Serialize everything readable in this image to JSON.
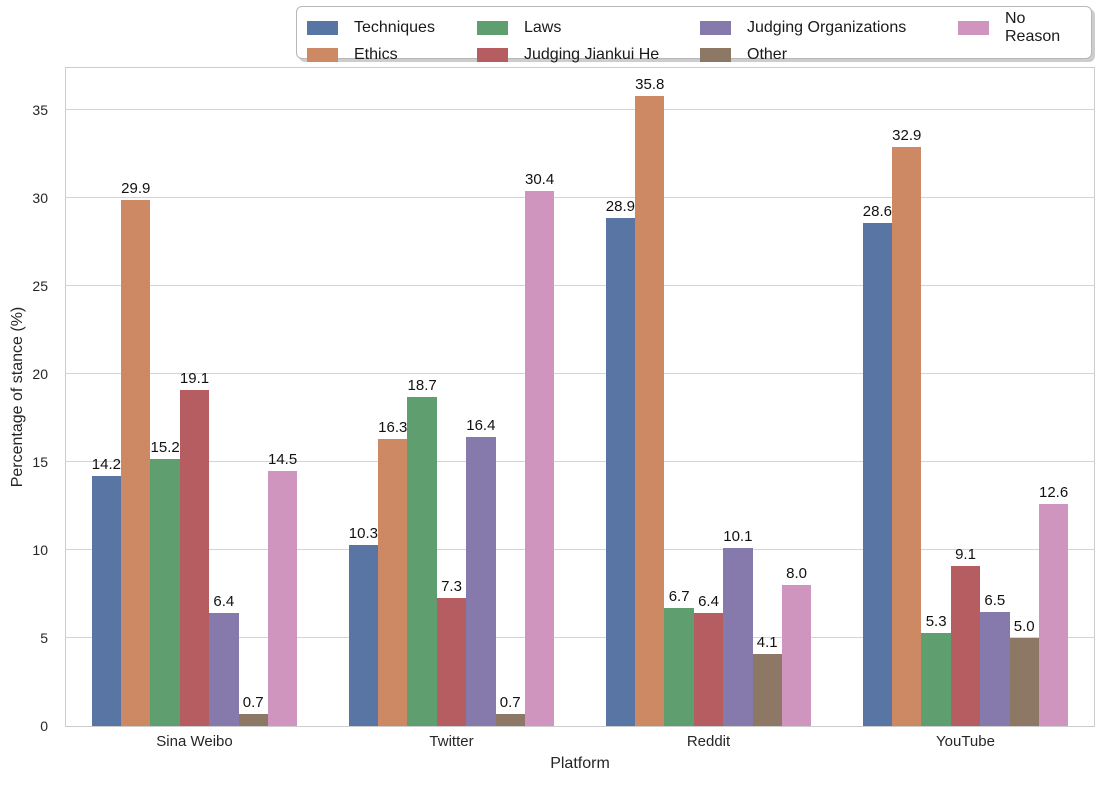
{
  "chart_data": {
    "type": "bar",
    "title": "",
    "xlabel": "Platform",
    "ylabel": "Percentage of stance (%)",
    "categories": [
      "Sina Weibo",
      "Twitter",
      "Reddit",
      "YouTube"
    ],
    "series": [
      {
        "name": "Techniques",
        "color": "#5975A4",
        "values": [
          14.2,
          10.3,
          28.9,
          28.6
        ]
      },
      {
        "name": "Ethics",
        "color": "#CC8963",
        "values": [
          29.9,
          16.3,
          35.8,
          32.9
        ]
      },
      {
        "name": "Laws",
        "color": "#5F9E6E",
        "values": [
          15.2,
          18.7,
          6.7,
          5.3
        ]
      },
      {
        "name": "Judging Jiankui He",
        "color": "#B55D60",
        "values": [
          19.1,
          7.3,
          6.4,
          9.1
        ]
      },
      {
        "name": "Judging Organizations",
        "color": "#857AAB",
        "values": [
          6.4,
          16.4,
          10.1,
          6.5
        ]
      },
      {
        "name": "Other",
        "color": "#8D7866",
        "values": [
          0.7,
          0.7,
          4.1,
          5.0
        ]
      },
      {
        "name": "No Reason",
        "color": "#D095BF",
        "values": [
          14.5,
          30.4,
          8.0,
          12.6
        ]
      }
    ],
    "yticks": [
      0,
      5,
      10,
      15,
      20,
      25,
      30,
      35
    ],
    "ylim": [
      0,
      37.4
    ],
    "grid": true,
    "legend_position": "top",
    "legend_columns": 4,
    "bar_value_labels": true,
    "value_label_decimals": 1
  }
}
